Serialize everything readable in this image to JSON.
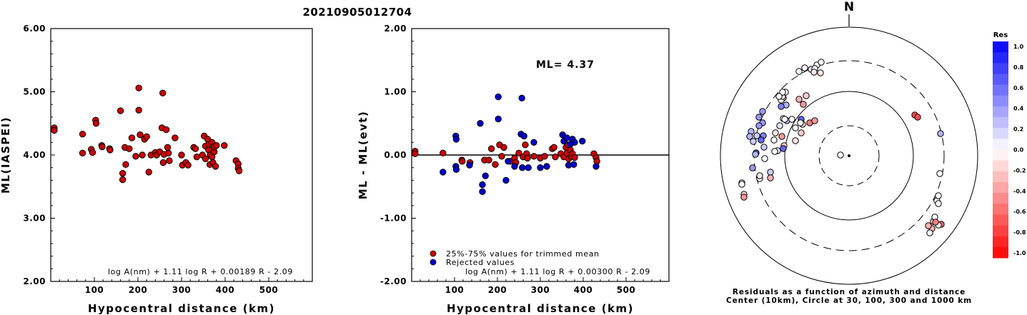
{
  "title": "20210905012704",
  "colors": {
    "red": "#cc0000",
    "blue": "#0000cc",
    "axis": "#000000"
  },
  "chart_data": [
    {
      "type": "scatter",
      "id": "left",
      "xlabel": "Hypocentral distance (km)",
      "ylabel": "ML(IASPEI)",
      "xlim": [
        0,
        600
      ],
      "ylim": [
        2.0,
        6.0
      ],
      "xticks": [
        "100",
        "200",
        "300",
        "400",
        "500"
      ],
      "yticks": [
        "2.00",
        "3.00",
        "4.00",
        "5.00",
        "6.00"
      ],
      "formula": "log A(nm) + 1.11 log R + 0.00189 R - 2.09",
      "points": [
        [
          8,
          4.43
        ],
        [
          8,
          4.39
        ],
        [
          73,
          4.33
        ],
        [
          73,
          4.03
        ],
        [
          93,
          4.09
        ],
        [
          96,
          4.04
        ],
        [
          103,
          4.55
        ],
        [
          104,
          4.5
        ],
        [
          117,
          4.15
        ],
        [
          118,
          4.13
        ],
        [
          135,
          4.1
        ],
        [
          136,
          4.08
        ],
        [
          160,
          4.7
        ],
        [
          165,
          3.61
        ],
        [
          165,
          3.71
        ],
        [
          170,
          4.12
        ],
        [
          172,
          3.85
        ],
        [
          180,
          4.1
        ],
        [
          186,
          4.27
        ],
        [
          195,
          3.98
        ],
        [
          202,
          5.06
        ],
        [
          202,
          4.71
        ],
        [
          205,
          4.32
        ],
        [
          210,
          4.0
        ],
        [
          215,
          4.25
        ],
        [
          220,
          4.29
        ],
        [
          225,
          3.73
        ],
        [
          230,
          4.0
        ],
        [
          240,
          4.04
        ],
        [
          243,
          4.0
        ],
        [
          250,
          4.05
        ],
        [
          255,
          4.43
        ],
        [
          257,
          4.98
        ],
        [
          258,
          3.88
        ],
        [
          260,
          4.01
        ],
        [
          265,
          4.4
        ],
        [
          268,
          4.12
        ],
        [
          270,
          4.03
        ],
        [
          272,
          3.91
        ],
        [
          285,
          4.27
        ],
        [
          300,
          4.0
        ],
        [
          302,
          3.84
        ],
        [
          310,
          3.88
        ],
        [
          315,
          3.84
        ],
        [
          328,
          4.12
        ],
        [
          332,
          4.1
        ],
        [
          335,
          3.97
        ],
        [
          348,
          4.0
        ],
        [
          352,
          4.3
        ],
        [
          355,
          4.14
        ],
        [
          355,
          3.94
        ],
        [
          360,
          4.25
        ],
        [
          362,
          4.17
        ],
        [
          362,
          4.08
        ],
        [
          365,
          3.85
        ],
        [
          366,
          4.0
        ],
        [
          370,
          4.2
        ],
        [
          370,
          3.97
        ],
        [
          372,
          3.88
        ],
        [
          375,
          4.05
        ],
        [
          375,
          4.13
        ],
        [
          378,
          3.82
        ],
        [
          380,
          4.15
        ],
        [
          398,
          4.15
        ],
        [
          425,
          3.91
        ],
        [
          430,
          3.86
        ],
        [
          430,
          3.79
        ],
        [
          432,
          3.75
        ]
      ]
    },
    {
      "type": "scatter",
      "id": "middle",
      "xlabel": "Hypocentral distance (km)",
      "ylabel": "ML - ML(evt)",
      "xlim": [
        0,
        600
      ],
      "ylim": [
        -2.0,
        2.0
      ],
      "xticks": [
        "100",
        "200",
        "300",
        "400",
        "500"
      ],
      "yticks": [
        "-2.00",
        "-1.00",
        "0.00",
        "1.00",
        "2.00"
      ],
      "annotation": "ML= 4.37",
      "legend": [
        {
          "label": "25%-75% values for trimmed mean",
          "color": "#cc0000"
        },
        {
          "label": "Rejected values",
          "color": "#0000cc"
        }
      ],
      "formula": "log A(nm) + 1.11 log R + 0.00300 R - 2.09",
      "series": [
        {
          "color": "#cc0000",
          "points": [
            [
              8,
              0.06
            ],
            [
              8,
              0.02
            ],
            [
              73,
              0.03
            ],
            [
              117,
              -0.08
            ],
            [
              118,
              -0.1
            ],
            [
              136,
              -0.12
            ],
            [
              170,
              -0.08
            ],
            [
              180,
              -0.08
            ],
            [
              186,
              0.1
            ],
            [
              195,
              -0.15
            ],
            [
              205,
              0.16
            ],
            [
              210,
              -0.02
            ],
            [
              215,
              0.12
            ],
            [
              230,
              -0.1
            ],
            [
              240,
              -0.05
            ],
            [
              243,
              -0.12
            ],
            [
              250,
              0.03
            ],
            [
              260,
              -0.03
            ],
            [
              265,
              0.16
            ],
            [
              268,
              0.02
            ],
            [
              270,
              -0.05
            ],
            [
              285,
              -0.02
            ],
            [
              300,
              -0.05
            ],
            [
              310,
              -0.02
            ],
            [
              328,
              0.1
            ],
            [
              332,
              0.12
            ],
            [
              335,
              -0.03
            ],
            [
              348,
              0.02
            ],
            [
              355,
              -0.03
            ],
            [
              360,
              0.12
            ],
            [
              362,
              0.03
            ],
            [
              365,
              0.16
            ],
            [
              366,
              -0.06
            ],
            [
              370,
              0.08
            ],
            [
              372,
              -0.02
            ],
            [
              375,
              0.02
            ],
            [
              380,
              -0.04
            ],
            [
              425,
              0.02
            ],
            [
              430,
              -0.04
            ],
            [
              432,
              -0.1
            ]
          ]
        },
        {
          "color": "#0000cc",
          "points": [
            [
              73,
              -0.27
            ],
            [
              103,
              0.3
            ],
            [
              104,
              0.25
            ],
            [
              103,
              -0.18
            ],
            [
              104,
              -0.23
            ],
            [
              135,
              -0.16
            ],
            [
              160,
              0.5
            ],
            [
              165,
              -0.47
            ],
            [
              165,
              -0.58
            ],
            [
              172,
              -0.33
            ],
            [
              202,
              0.92
            ],
            [
              202,
              0.57
            ],
            [
              220,
              -0.4
            ],
            [
              225,
              -0.1
            ],
            [
              240,
              -0.18
            ],
            [
              255,
              0.33
            ],
            [
              257,
              0.9
            ],
            [
              258,
              -0.2
            ],
            [
              262,
              0.3
            ],
            [
              272,
              -0.2
            ],
            [
              285,
              0.2
            ],
            [
              300,
              -0.2
            ],
            [
              315,
              -0.18
            ],
            [
              352,
              0.32
            ],
            [
              355,
              0.22
            ],
            [
              362,
              0.27
            ],
            [
              366,
              -0.16
            ],
            [
              370,
              0.17
            ],
            [
              375,
              0.25
            ],
            [
              378,
              -0.15
            ],
            [
              380,
              0.2
            ],
            [
              398,
              0.22
            ],
            [
              430,
              -0.18
            ]
          ]
        }
      ]
    },
    {
      "type": "scatter",
      "id": "polar",
      "north_label": "N",
      "circles_km": [
        30,
        100,
        300,
        1000
      ],
      "center_km": 10,
      "caption_line1": "Residuals as a function of azimuth and distance",
      "caption_line2": "Center (10km), Circle at 30, 100, 300 and 1000 km",
      "colorbar_title": "Res",
      "colorbar_ticks": [
        "1.0",
        "0.8",
        "0.6",
        "0.4",
        "0.2",
        "0.0",
        "-0.2",
        "-0.4",
        "-0.6",
        "-0.8",
        "-1.0"
      ],
      "points_note": "residual in ML units",
      "points": [
        [
          -12,
          -1,
          0.0
        ],
        [
          -62,
          -123,
          0.0
        ],
        [
          -53,
          -121,
          0.1
        ],
        [
          -70,
          -118,
          0.0
        ],
        [
          -45,
          -127,
          0.0
        ],
        [
          -40,
          -116,
          -0.1
        ],
        [
          -39,
          -131,
          0.0
        ],
        [
          -60,
          -84,
          -0.2
        ],
        [
          -70,
          -79,
          -0.3
        ],
        [
          -64,
          -72,
          -0.4
        ],
        [
          -88,
          -71,
          0.3
        ],
        [
          -95,
          -69,
          0.5
        ],
        [
          -92,
          -52,
          0.0
        ],
        [
          -87,
          -49,
          0.3
        ],
        [
          -67,
          -51,
          0.6
        ],
        [
          -75,
          -39,
          0.0
        ],
        [
          -97,
          -42,
          0.1
        ],
        [
          -103,
          -32,
          -0.1
        ],
        [
          -121,
          -62,
          0.4
        ],
        [
          -126,
          -54,
          0.4
        ],
        [
          -121,
          -46,
          0.4
        ],
        [
          -129,
          -28,
          0.2
        ],
        [
          -120,
          -28,
          0.5
        ],
        [
          -137,
          -34,
          0.3
        ],
        [
          -139,
          -27,
          0.3
        ],
        [
          -134,
          -20,
          0.2
        ],
        [
          -123,
          -22,
          0.6
        ],
        [
          -130,
          -4,
          0.6
        ],
        [
          -100,
          -7,
          0.1
        ],
        [
          -91,
          -14,
          -0.2
        ],
        [
          -94,
          -27,
          -0.4
        ],
        [
          -104,
          -6,
          0.0
        ],
        [
          -135,
          17,
          0.4
        ],
        [
          -118,
          4,
          0.0
        ],
        [
          -110,
          23,
          0.2
        ],
        [
          -125,
          32,
          0.0
        ],
        [
          -110,
          31,
          -0.3
        ],
        [
          -125,
          28,
          -0.1
        ],
        [
          -92,
          -10,
          0.6
        ],
        [
          -67,
          -32,
          -0.2
        ],
        [
          -147,
          54,
          -0.2
        ],
        [
          -150,
          38,
          0.0
        ],
        [
          -150,
          40,
          0.0
        ],
        [
          -75,
          -21,
          -0.1
        ],
        [
          -119,
          -12,
          0.2
        ],
        [
          -105,
          -22,
          0.0
        ],
        [
          -131,
          -2,
          0.3
        ],
        [
          -126,
          -42,
          0.4
        ],
        [
          -90,
          -51,
          0.0
        ],
        [
          -80,
          -51,
          0.0
        ],
        [
          -147,
          58,
          -0.4
        ],
        [
          -92,
          -81,
          -0.1
        ],
        [
          -95,
          -78,
          0.0
        ],
        [
          -55,
          -46,
          -0.5
        ],
        [
          -48,
          -49,
          -0.4
        ],
        [
          -65,
          -44,
          -0.2
        ],
        [
          -68,
          -46,
          0.0
        ],
        [
          -93,
          -83,
          -0.1
        ],
        [
          -89,
          -89,
          0.0
        ],
        [
          -93,
          -89,
          0.0
        ],
        [
          -98,
          -83,
          0.0
        ],
        [
          -48,
          -122,
          0.0
        ],
        [
          -49,
          -117,
          -0.1
        ],
        [
          92,
          -57,
          -0.7
        ],
        [
          96,
          -54,
          -0.7
        ],
        [
          128,
          -31,
          0.3
        ],
        [
          127,
          25,
          0.0
        ],
        [
          123,
          63,
          0.0
        ],
        [
          125,
          67,
          0.0
        ],
        [
          125,
          56,
          0.0
        ],
        [
          118,
          92,
          -0.2
        ],
        [
          120,
          86,
          0.0
        ],
        [
          116,
          102,
          -0.3
        ],
        [
          111,
          98,
          -0.3
        ],
        [
          113,
          108,
          0.0
        ],
        [
          129,
          96,
          -0.6
        ],
        [
          125,
          97,
          0.0
        ],
        [
          121,
          93,
          -0.5
        ]
      ]
    }
  ]
}
